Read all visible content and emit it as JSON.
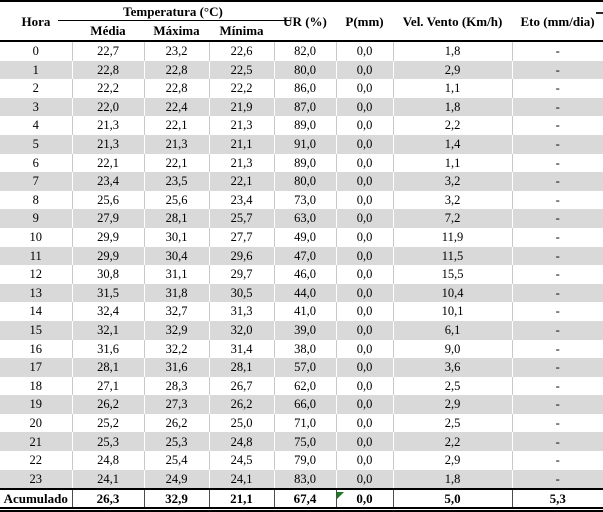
{
  "table": {
    "header": {
      "hora": "Hora",
      "temperatura_group": "Temperatura (°C)",
      "media": "Média",
      "maxima": "Máxima",
      "minima": "Mínima",
      "ur": "UR (%)",
      "p": "P(mm)",
      "vel_vento": "Vel. Vento (Km/h)",
      "eto": "Eto (mm/dia)"
    },
    "rows": [
      [
        "0",
        "22,7",
        "23,2",
        "22,6",
        "82,0",
        "0,0",
        "1,8",
        "-"
      ],
      [
        "1",
        "22,8",
        "22,8",
        "22,5",
        "80,0",
        "0,0",
        "2,9",
        "-"
      ],
      [
        "2",
        "22,2",
        "22,8",
        "22,2",
        "86,0",
        "0,0",
        "1,1",
        "-"
      ],
      [
        "3",
        "22,0",
        "22,4",
        "21,9",
        "87,0",
        "0,0",
        "1,8",
        "-"
      ],
      [
        "4",
        "21,3",
        "22,1",
        "21,3",
        "89,0",
        "0,0",
        "2,2",
        "-"
      ],
      [
        "5",
        "21,3",
        "21,3",
        "21,1",
        "91,0",
        "0,0",
        "1,4",
        "-"
      ],
      [
        "6",
        "22,1",
        "22,1",
        "21,3",
        "89,0",
        "0,0",
        "1,1",
        "-"
      ],
      [
        "7",
        "23,4",
        "23,5",
        "22,1",
        "80,0",
        "0,0",
        "3,2",
        "-"
      ],
      [
        "8",
        "25,6",
        "25,6",
        "23,4",
        "73,0",
        "0,0",
        "3,2",
        "-"
      ],
      [
        "9",
        "27,9",
        "28,1",
        "25,7",
        "63,0",
        "0,0",
        "7,2",
        "-"
      ],
      [
        "10",
        "29,9",
        "30,1",
        "27,7",
        "49,0",
        "0,0",
        "11,9",
        "-"
      ],
      [
        "11",
        "29,9",
        "30,4",
        "29,6",
        "47,0",
        "0,0",
        "11,5",
        "-"
      ],
      [
        "12",
        "30,8",
        "31,1",
        "29,7",
        "46,0",
        "0,0",
        "15,5",
        "-"
      ],
      [
        "13",
        "31,5",
        "31,8",
        "30,5",
        "44,0",
        "0,0",
        "10,4",
        "-"
      ],
      [
        "14",
        "32,4",
        "32,7",
        "31,3",
        "41,0",
        "0,0",
        "10,1",
        "-"
      ],
      [
        "15",
        "32,1",
        "32,9",
        "32,0",
        "39,0",
        "0,0",
        "6,1",
        "-"
      ],
      [
        "16",
        "31,6",
        "32,2",
        "31,4",
        "38,0",
        "0,0",
        "9,0",
        "-"
      ],
      [
        "17",
        "28,1",
        "31,6",
        "28,1",
        "57,0",
        "0,0",
        "3,6",
        "-"
      ],
      [
        "18",
        "27,1",
        "28,3",
        "26,7",
        "62,0",
        "0,0",
        "2,5",
        "-"
      ],
      [
        "19",
        "26,2",
        "27,3",
        "26,2",
        "66,0",
        "0,0",
        "2,9",
        "-"
      ],
      [
        "20",
        "25,2",
        "26,2",
        "25,0",
        "71,0",
        "0,0",
        "2,5",
        "-"
      ],
      [
        "21",
        "25,3",
        "25,3",
        "24,8",
        "75,0",
        "0,0",
        "2,2",
        "-"
      ],
      [
        "22",
        "24,8",
        "25,4",
        "24,5",
        "79,0",
        "0,0",
        "2,9",
        "-"
      ],
      [
        "23",
        "24,1",
        "24,9",
        "24,1",
        "83,0",
        "0,0",
        "1,8",
        "-"
      ]
    ],
    "footer": {
      "label": "Acumulado",
      "values": [
        "26,3",
        "32,9",
        "21,1",
        "67,4",
        "0,0",
        "5,0",
        "5,3"
      ]
    }
  },
  "colors": {
    "stripe_gray": "#d9d9d9",
    "border_black": "#000000",
    "cell_grid_gray": "#c9c9c9",
    "error_indicator_green": "#1a7a1e"
  }
}
